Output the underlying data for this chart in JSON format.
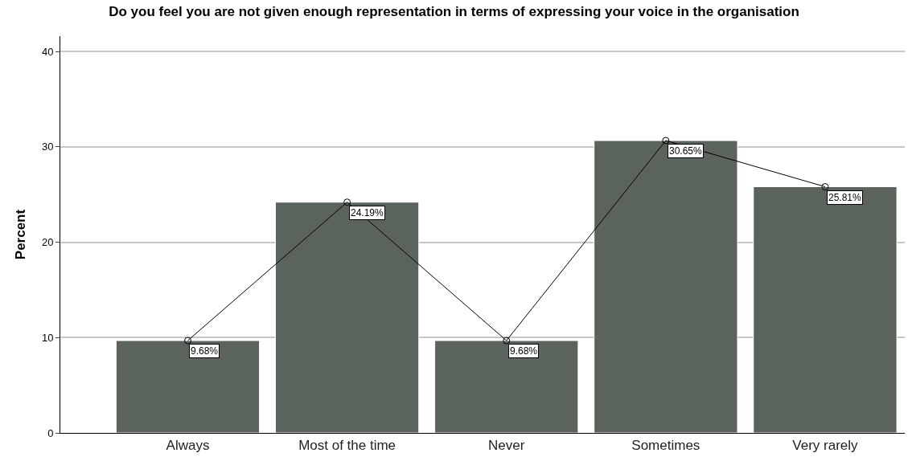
{
  "chart_data": {
    "type": "bar",
    "title": "Do you feel you are not given enough representation in terms of expressing your voice in the organisation",
    "ylabel": "Percent",
    "categories": [
      "Always",
      "Most of the time",
      "Never",
      "Sometimes",
      "Very rarely"
    ],
    "series": [
      {
        "color": "#5b635d",
        "values": [
          9.68,
          24.19,
          9.68,
          30.65,
          25.81
        ]
      },
      {
        "type": "line",
        "color": "#000000",
        "marker": "circle",
        "values": [
          9.68,
          24.19,
          9.68,
          30.65,
          25.81
        ],
        "value_labels": [
          "9.68%",
          "24.19%",
          "9.68%",
          "30.65%",
          "25.81%"
        ]
      }
    ],
    "ylim": [
      0,
      41.6
    ],
    "yticks": [
      0,
      10,
      20,
      30,
      40
    ],
    "grid": "y"
  }
}
